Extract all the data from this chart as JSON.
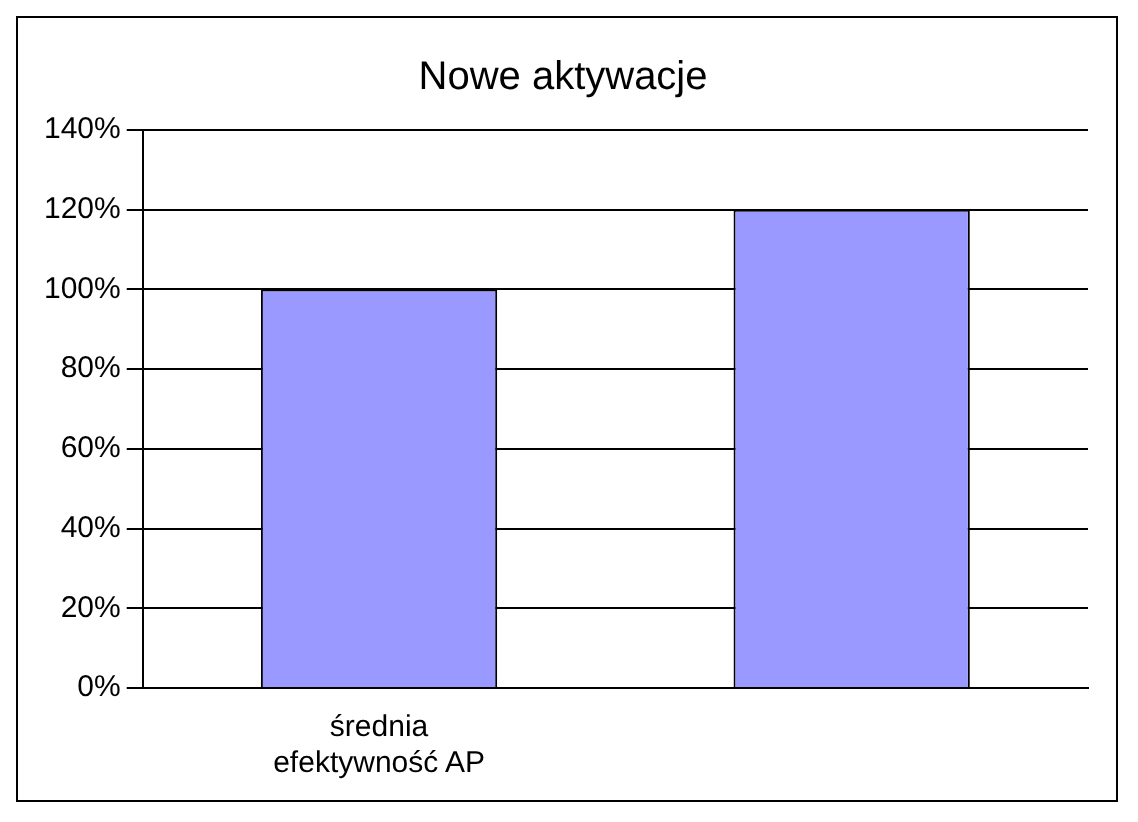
{
  "chart_data": {
    "type": "bar",
    "title": "Nowe aktywacje",
    "categories": [
      "średnia efektywność AP",
      null
    ],
    "values": [
      100,
      120
    ],
    "color": "#9999ff",
    "ylim": [
      0,
      140
    ],
    "yticks": [
      {
        "value": 0,
        "label": "0%"
      },
      {
        "value": 20,
        "label": "20%"
      },
      {
        "value": 40,
        "label": "40%"
      },
      {
        "value": 60,
        "label": "60%"
      },
      {
        "value": 80,
        "label": "80%"
      },
      {
        "value": 100,
        "label": "100%"
      },
      {
        "value": 120,
        "label": "120%"
      },
      {
        "value": 140,
        "label": "140%"
      }
    ],
    "grid": "y",
    "legend": false
  }
}
